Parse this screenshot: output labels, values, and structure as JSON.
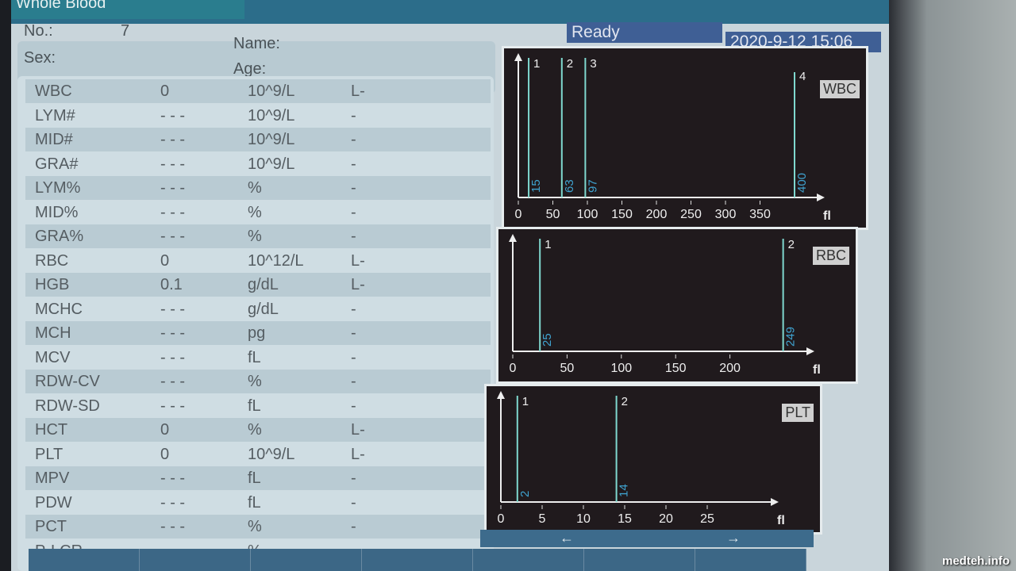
{
  "header": {
    "mode": "Whole Blood",
    "status": "Ready",
    "datetime": "2020-9-12 15:06"
  },
  "patient": {
    "no_label": "No.:",
    "no": "7",
    "name_label": "Name:",
    "sex_label": "Sex:",
    "age_label": "Age:"
  },
  "results": [
    {
      "param": "WBC",
      "value": "0",
      "unit": "10^9/L",
      "flag": "L-"
    },
    {
      "param": "LYM#",
      "value": "- - -",
      "unit": "10^9/L",
      "flag": "-"
    },
    {
      "param": "MID#",
      "value": "- - -",
      "unit": "10^9/L",
      "flag": "-"
    },
    {
      "param": "GRA#",
      "value": "- - -",
      "unit": "10^9/L",
      "flag": "-"
    },
    {
      "param": "LYM%",
      "value": "- - -",
      "unit": "%",
      "flag": "-"
    },
    {
      "param": "MID%",
      "value": "- - -",
      "unit": "%",
      "flag": "-"
    },
    {
      "param": "GRA%",
      "value": "- - -",
      "unit": "%",
      "flag": "-"
    },
    {
      "param": "RBC",
      "value": "0",
      "unit": "10^12/L",
      "flag": "L-"
    },
    {
      "param": "HGB",
      "value": "0.1",
      "unit": "g/dL",
      "flag": "L-"
    },
    {
      "param": "MCHC",
      "value": "- - -",
      "unit": "g/dL",
      "flag": "-"
    },
    {
      "param": "MCH",
      "value": "- - -",
      "unit": "pg",
      "flag": "-"
    },
    {
      "param": "MCV",
      "value": "- - -",
      "unit": "fL",
      "flag": "-"
    },
    {
      "param": "RDW-CV",
      "value": "- - -",
      "unit": "%",
      "flag": "-"
    },
    {
      "param": "RDW-SD",
      "value": "- - -",
      "unit": "fL",
      "flag": "-"
    },
    {
      "param": "HCT",
      "value": "0",
      "unit": "%",
      "flag": "L-"
    },
    {
      "param": "PLT",
      "value": "0",
      "unit": "10^9/L",
      "flag": "L-"
    },
    {
      "param": "MPV",
      "value": "- - -",
      "unit": "fL",
      "flag": "-"
    },
    {
      "param": "PDW",
      "value": "- - -",
      "unit": "fL",
      "flag": "-"
    },
    {
      "param": "PCT",
      "value": "- - -",
      "unit": "%",
      "flag": "-"
    },
    {
      "param": "P-LCR",
      "value": "- - -",
      "unit": "%",
      "flag": "-"
    }
  ],
  "histograms": [
    {
      "label": "WBC",
      "xmax": 400,
      "ticks": [
        0,
        50,
        100,
        150,
        200,
        250,
        300,
        350
      ],
      "unit": "fl",
      "markers": [
        {
          "n": "1",
          "x": 15
        },
        {
          "n": "2",
          "x": 63
        },
        {
          "n": "3",
          "x": 97
        },
        {
          "n": "4",
          "x": 400
        }
      ]
    },
    {
      "label": "RBC",
      "xmax": 250,
      "ticks": [
        0,
        50,
        100,
        150,
        200
      ],
      "unit": "fl",
      "markers": [
        {
          "n": "1",
          "x": 25
        },
        {
          "n": "2",
          "x": 249
        }
      ]
    },
    {
      "label": "PLT",
      "xmax": 30,
      "ticks": [
        0,
        5,
        10,
        15,
        20,
        25
      ],
      "unit": "fl",
      "markers": [
        {
          "n": "1",
          "x": 2
        },
        {
          "n": "2",
          "x": 14
        }
      ]
    }
  ],
  "nav": {
    "prev": "←",
    "next": "→"
  },
  "watermark": "medteh.info",
  "colors": {
    "marker": "#7fd8cf",
    "value": "#3fa3d0",
    "panel": "#201a1d"
  }
}
